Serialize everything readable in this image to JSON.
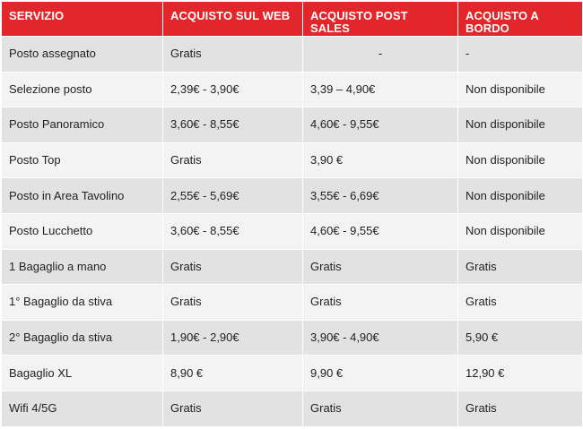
{
  "table": {
    "headers": [
      "SERVIZIO",
      "ACQUISTO SUL WEB",
      "ACQUISTO POST SALES",
      "ACQUISTO A BORDO"
    ],
    "rows": [
      {
        "servizio": "Posto assegnato",
        "web": "Gratis",
        "post_sales": "-",
        "bordo": "-"
      },
      {
        "servizio": "Selezione posto",
        "web": "2,39€ - 3,90€",
        "post_sales": "3,39 – 4,90€",
        "bordo": "Non disponibile"
      },
      {
        "servizio": "Posto Panoramico",
        "web": "3,60€ - 8,55€",
        "post_sales": "4,60€ - 9,55€",
        "bordo": "Non disponibile"
      },
      {
        "servizio": "Posto Top",
        "web": "Gratis",
        "post_sales": "3,90 €",
        "bordo": "Non disponibile"
      },
      {
        "servizio": "Posto in Area Tavolino",
        "web": "2,55€ - 5,69€",
        "post_sales": "3,55€ - 6,69€",
        "bordo": "Non disponibile"
      },
      {
        "servizio": "Posto Lucchetto",
        "web": "3,60€ - 8,55€",
        "post_sales": "4,60€ - 9,55€",
        "bordo": "Non disponibile"
      },
      {
        "servizio": "1 Bagaglio a mano",
        "web": "Gratis",
        "post_sales": "Gratis",
        "bordo": "Gratis"
      },
      {
        "servizio": "1° Bagaglio da stiva",
        "web": "Gratis",
        "post_sales": "Gratis",
        "bordo": "Gratis"
      },
      {
        "servizio": "2° Bagaglio da stiva",
        "web": "1,90€ - 2,90€",
        "post_sales": "3,90€ - 4,90€",
        "bordo": "5,90 €"
      },
      {
        "servizio": "Bagaglio XL",
        "web": "8,90 €",
        "post_sales": "9,90 €",
        "bordo": "12,90 €"
      },
      {
        "servizio": "Wifi 4/5G",
        "web": "Gratis",
        "post_sales": "Gratis",
        "bordo": "Gratis"
      }
    ]
  },
  "colors": {
    "header_bg": "#e3262c",
    "header_text": "#ffffff",
    "row_odd": "#e2e2e2",
    "row_even": "#f3f3f3"
  }
}
